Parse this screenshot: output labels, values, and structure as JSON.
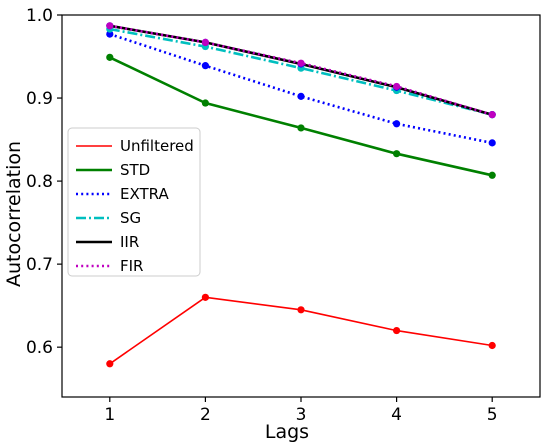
{
  "chart_data": {
    "type": "line",
    "xlabel": "Lags",
    "ylabel": "Autocorrelation",
    "x": [
      1,
      2,
      3,
      4,
      5
    ],
    "xticks": [
      "1",
      "2",
      "3",
      "4",
      "5"
    ],
    "yticks": [
      "0.6",
      "0.7",
      "0.8",
      "0.9",
      "1.0"
    ],
    "ytick_values": [
      0.6,
      0.7,
      0.8,
      0.9,
      1.0
    ],
    "xlim": [
      0.5,
      5.5
    ],
    "ylim": [
      0.54,
      1.0
    ],
    "grid": false,
    "legend_position": "center-left",
    "series": [
      {
        "name": "Unfiltered",
        "color": "#ff0000",
        "style": "solid",
        "marker_color": "#ff0000",
        "values": [
          0.58,
          0.66,
          0.645,
          0.62,
          0.602
        ]
      },
      {
        "name": "STD",
        "color": "#008000",
        "style": "solid",
        "marker_color": "#008000",
        "values": [
          0.949,
          0.894,
          0.864,
          0.833,
          0.807
        ]
      },
      {
        "name": "EXTRA",
        "color": "#0000ff",
        "style": "dotted",
        "marker_color": "#0000ff",
        "values": [
          0.977,
          0.939,
          0.902,
          0.869,
          0.846
        ]
      },
      {
        "name": "SG",
        "color": "#00bfbf",
        "style": "dashdot",
        "marker_color": "#00bfbf",
        "values": [
          0.983,
          0.962,
          0.936,
          0.909,
          0.88
        ]
      },
      {
        "name": "IIR",
        "color": "#000000",
        "style": "solid",
        "marker_color": "#0000ff",
        "values": [
          0.987,
          0.967,
          0.941,
          0.913,
          0.88
        ]
      },
      {
        "name": "FIR",
        "color": "#bf00bf",
        "style": "dotted",
        "marker_color": "#bf00bf",
        "values": [
          0.987,
          0.967,
          0.942,
          0.914,
          0.88
        ]
      }
    ]
  }
}
